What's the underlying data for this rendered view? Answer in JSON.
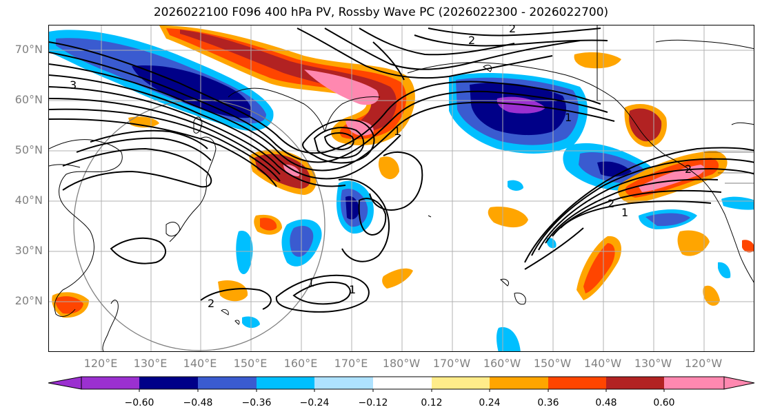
{
  "title": "2026022100 F096 400 hPa PV, Rossby Wave PC (2026022300 - 2026022700)",
  "lat_labels": [
    "70°N",
    "60°N",
    "50°N",
    "40°N",
    "30°N",
    "20°N"
  ],
  "lon_labels": [
    "120°E",
    "130°E",
    "140°E",
    "150°E",
    "160°E",
    "170°E",
    "180°W",
    "170°W",
    "160°W",
    "150°W",
    "140°W",
    "130°W",
    "120°W"
  ],
  "contour_labels": [
    "2",
    "2",
    "3",
    "1",
    "1",
    "2",
    "1",
    "1",
    "2",
    "2",
    "1"
  ],
  "colorbar": {
    "colors": [
      "#9b30d0",
      "#000088",
      "#3a5bd0",
      "#00bfff",
      "#aee2ff",
      "#ffffff",
      "#ffec8a",
      "#ffa500",
      "#ff4500",
      "#b22222",
      "#ff88b0"
    ],
    "tick_labels": [
      "−0.60",
      "−0.48",
      "−0.36",
      "−0.24",
      "−0.12",
      "0.12",
      "0.24",
      "0.36",
      "0.48",
      "0.60"
    ]
  },
  "colors": {
    "neg_extreme": "#9b30d0",
    "neg_strong": "#000088",
    "neg_mid": "#3a5bd0",
    "neg_weak": "#00bfff",
    "pos_weak": "#ffa500",
    "pos_mid": "#ff4500",
    "pos_strong": "#b22222",
    "pos_extreme": "#ff88b0",
    "gridline": "#b0b0b0",
    "label_gray": "#808080"
  }
}
